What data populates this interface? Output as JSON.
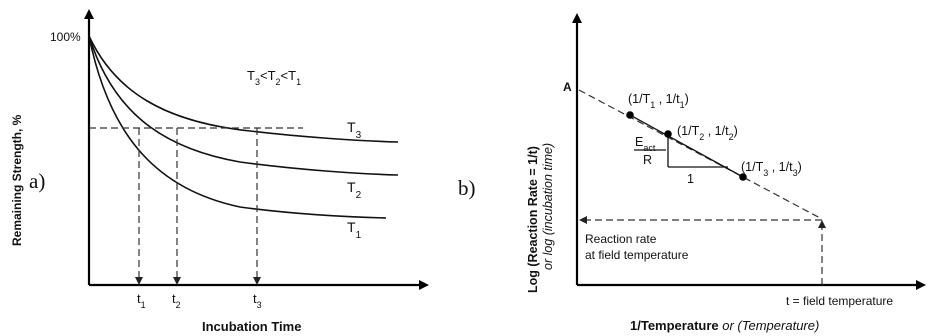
{
  "panel_a": {
    "label": "a)",
    "y_axis_label": "Remaining Strength, %",
    "x_axis_label": "Incubation Time",
    "hundred_percent": "100%",
    "relation": {
      "t3": "T",
      "s3": "3",
      "lt1": "<",
      "t2": "T",
      "s2": "2",
      "lt2": "<",
      "t1": "T",
      "s1": "1"
    },
    "curves": [
      {
        "name": "T",
        "sub": "3"
      },
      {
        "name": "T",
        "sub": "2"
      },
      {
        "name": "T",
        "sub": "1"
      }
    ],
    "ticks": [
      {
        "name": "t",
        "sub": "1"
      },
      {
        "name": "t",
        "sub": "2"
      },
      {
        "name": "t",
        "sub": "3"
      }
    ]
  },
  "panel_b": {
    "label": "b)",
    "y_axis_label_main": "Log (Reaction Rate = 1/t)",
    "y_axis_label_alt": "or log (incubation time)",
    "x_axis_label_main": "1/Temperature",
    "x_axis_label_alt": " or (Temperature)",
    "point_a": "A",
    "points": [
      {
        "pre": "(1/T",
        "s1": "1",
        "mid": " , 1/t",
        "s2": "1",
        "post": ")"
      },
      {
        "pre": "(1/T",
        "s1": "2",
        "mid": " , 1/t",
        "s2": "2",
        "post": ")"
      },
      {
        "pre": "(1/T",
        "s1": "3",
        "mid": " , 1/t",
        "s2": "3",
        "post": ")"
      }
    ],
    "slope_numerator": "E",
    "slope_numerator_sub": "act",
    "slope_denominator": "R",
    "slope_run": "1",
    "reaction_rate_line1": "Reaction rate",
    "reaction_rate_line2": "at field temperature",
    "field_temp_label": "t = field temperature"
  }
}
